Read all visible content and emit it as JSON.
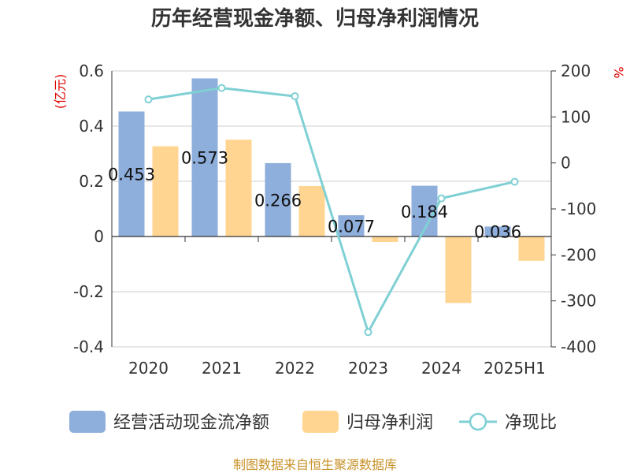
{
  "chart_data": {
    "type": "bar",
    "title": "历年经营现金净额、归母净利润情况",
    "categories": [
      "2020",
      "2021",
      "2022",
      "2023",
      "2024",
      "2025H1"
    ],
    "left_axis": {
      "unit": "(亿元)",
      "ylim": [
        -0.4,
        0.6
      ],
      "ticks": [
        "0.6",
        "0.4",
        "0.2",
        "0",
        "-0.2",
        "-0.4"
      ],
      "tick_values": [
        0.6,
        0.4,
        0.2,
        0,
        -0.2,
        -0.4
      ]
    },
    "right_axis": {
      "unit": "%",
      "ylim": [
        -400,
        200
      ],
      "ticks": [
        "200",
        "100",
        "0",
        "-100",
        "-200",
        "-300",
        "-400"
      ],
      "tick_values": [
        200,
        100,
        0,
        -100,
        -200,
        -300,
        -400
      ]
    },
    "series": [
      {
        "name": "经营活动现金流净额",
        "type": "bar",
        "axis": "left",
        "color": "#8eaedb",
        "values": [
          0.453,
          0.573,
          0.266,
          0.077,
          0.184,
          0.036
        ],
        "labels": [
          "0.453",
          "0.573",
          "0.266",
          "0.077",
          "0.184",
          "0.036"
        ]
      },
      {
        "name": "归母净利润",
        "type": "bar",
        "axis": "left",
        "color": "#ffd591",
        "values": [
          0.327,
          0.351,
          0.183,
          -0.02,
          -0.241,
          -0.088
        ]
      },
      {
        "name": "净现比",
        "type": "line",
        "axis": "right",
        "color": "#7fd0d4",
        "values": [
          138,
          163,
          145,
          -368,
          -77,
          -41
        ]
      }
    ],
    "grid": true,
    "legend_position": "bottom"
  },
  "source": "制图数据来自恒生聚源数据库"
}
